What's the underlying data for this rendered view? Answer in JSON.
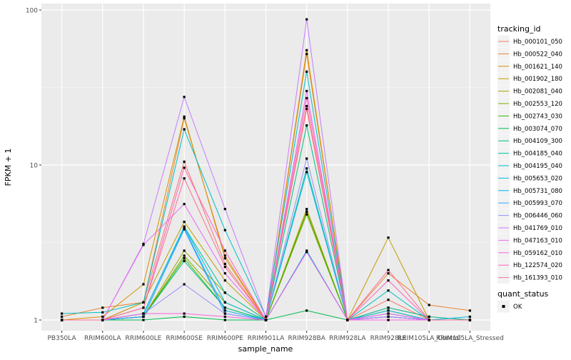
{
  "chart_data": {
    "type": "line",
    "y_scale": "log",
    "ylim": [
      1,
      100
    ],
    "grid": true,
    "legend_position": "right",
    "xlabel": "sample_name",
    "ylabel": "FPKM + 1",
    "categories": [
      "PB350LA",
      "RRIM600LA",
      "RRIM600LE",
      "RRIM600SE",
      "RRIM600PE",
      "RRIM901LA",
      "RRIM928BA",
      "RRIM928LA",
      "RRIM928LE",
      "RRIM105LA_Control",
      "RRIM105LA_Stressed"
    ],
    "y_ticks": [
      {
        "value": 1,
        "label": "1"
      },
      {
        "value": 10,
        "label": "10"
      },
      {
        "value": 100,
        "label": "100"
      }
    ],
    "legend": {
      "color_title": "tracking_id",
      "shape_title": "quant_status",
      "shape_items": [
        "OK"
      ]
    },
    "series": [
      {
        "name": "Hb_000101_050",
        "color": "#F8766D",
        "values": [
          1,
          1,
          1.3,
          10.5,
          2.3,
          1,
          24,
          1,
          1.35,
          1,
          1
        ]
      },
      {
        "name": "Hb_000522_040",
        "color": "#EA8331",
        "values": [
          1.05,
          1.2,
          1.3,
          20,
          2.6,
          1,
          52,
          1,
          2,
          1.25,
          1.15
        ]
      },
      {
        "name": "Hb_001621_140",
        "color": "#D89000",
        "values": [
          1,
          1.05,
          1.7,
          20.5,
          2.5,
          1,
          55,
          1,
          1.2,
          1.05,
          1
        ]
      },
      {
        "name": "Hb_001902_180",
        "color": "#C09B00",
        "values": [
          1,
          1,
          1.3,
          4.3,
          1.8,
          1,
          5.2,
          1,
          3.4,
          1,
          1
        ]
      },
      {
        "name": "Hb_002081_040",
        "color": "#A3A500",
        "values": [
          1,
          1,
          1.05,
          2.8,
          1.5,
          1,
          5,
          1,
          1.15,
          1,
          1
        ]
      },
      {
        "name": "Hb_002553_120",
        "color": "#7CAE00",
        "values": [
          1,
          1,
          1.05,
          2.6,
          1.3,
          1,
          4.8,
          1,
          1.1,
          1,
          1
        ]
      },
      {
        "name": "Hb_002743_030",
        "color": "#39B600",
        "values": [
          1,
          1,
          1.05,
          2.5,
          1.2,
          1,
          5,
          1,
          1.05,
          1,
          1
        ]
      },
      {
        "name": "Hb_003074_070",
        "color": "#00BB4E",
        "values": [
          1,
          1,
          1,
          1.05,
          1,
          1,
          1.15,
          1,
          1,
          1,
          1
        ]
      },
      {
        "name": "Hb_004109_300",
        "color": "#00BF7D",
        "values": [
          1,
          1,
          1.05,
          2.4,
          1.2,
          1,
          18,
          1,
          1.05,
          1,
          1
        ]
      },
      {
        "name": "Hb_004185_040",
        "color": "#00C1A3",
        "values": [
          1,
          1,
          1.1,
          4,
          1.5,
          1,
          9.5,
          1,
          1.2,
          1.05,
          1
        ]
      },
      {
        "name": "Hb_004195_040",
        "color": "#00BFC4",
        "values": [
          1.1,
          1.12,
          1.3,
          17,
          3.8,
          1.05,
          40,
          1,
          1.55,
          1,
          1
        ]
      },
      {
        "name": "Hb_005653_020",
        "color": "#00BAE0",
        "values": [
          1,
          1,
          1.1,
          4,
          1.3,
          1,
          9,
          1,
          1.15,
          1,
          1.05
        ]
      },
      {
        "name": "Hb_005731_080",
        "color": "#00B0F6",
        "values": [
          1,
          1,
          1.05,
          3.9,
          1.15,
          1,
          2.8,
          1,
          1.05,
          1,
          1
        ]
      },
      {
        "name": "Hb_005993_070",
        "color": "#35A2FF",
        "values": [
          1,
          1,
          1.05,
          3.85,
          1.1,
          1,
          2.75,
          1,
          1.05,
          1,
          1
        ]
      },
      {
        "name": "Hb_006446_060",
        "color": "#9590FF",
        "values": [
          1,
          1,
          1.1,
          1.7,
          1.1,
          1,
          11,
          1,
          1.1,
          1,
          1
        ]
      },
      {
        "name": "Hb_041769_010",
        "color": "#C77CFF",
        "values": [
          1,
          1,
          3.1,
          27.5,
          5.2,
          1.05,
          87,
          1,
          1.05,
          1,
          1
        ]
      },
      {
        "name": "Hb_047163_010",
        "color": "#E76BF3",
        "values": [
          1,
          1,
          3.05,
          5.6,
          2,
          1,
          30,
          1,
          1.1,
          1,
          1
        ]
      },
      {
        "name": "Hb_059162_010",
        "color": "#FA62DB",
        "values": [
          1,
          1,
          1.1,
          1.1,
          1.05,
          1,
          2.75,
          1,
          1,
          1,
          1
        ]
      },
      {
        "name": "Hb_122574_020",
        "color": "#FF62BC",
        "values": [
          1,
          1,
          1.2,
          9.6,
          2.8,
          1,
          27,
          1,
          1.8,
          1,
          1
        ]
      },
      {
        "name": "Hb_161393_010",
        "color": "#FF6C91",
        "values": [
          1,
          1,
          1.2,
          8.2,
          2.2,
          1,
          23,
          1,
          2.1,
          1,
          1
        ]
      }
    ]
  }
}
